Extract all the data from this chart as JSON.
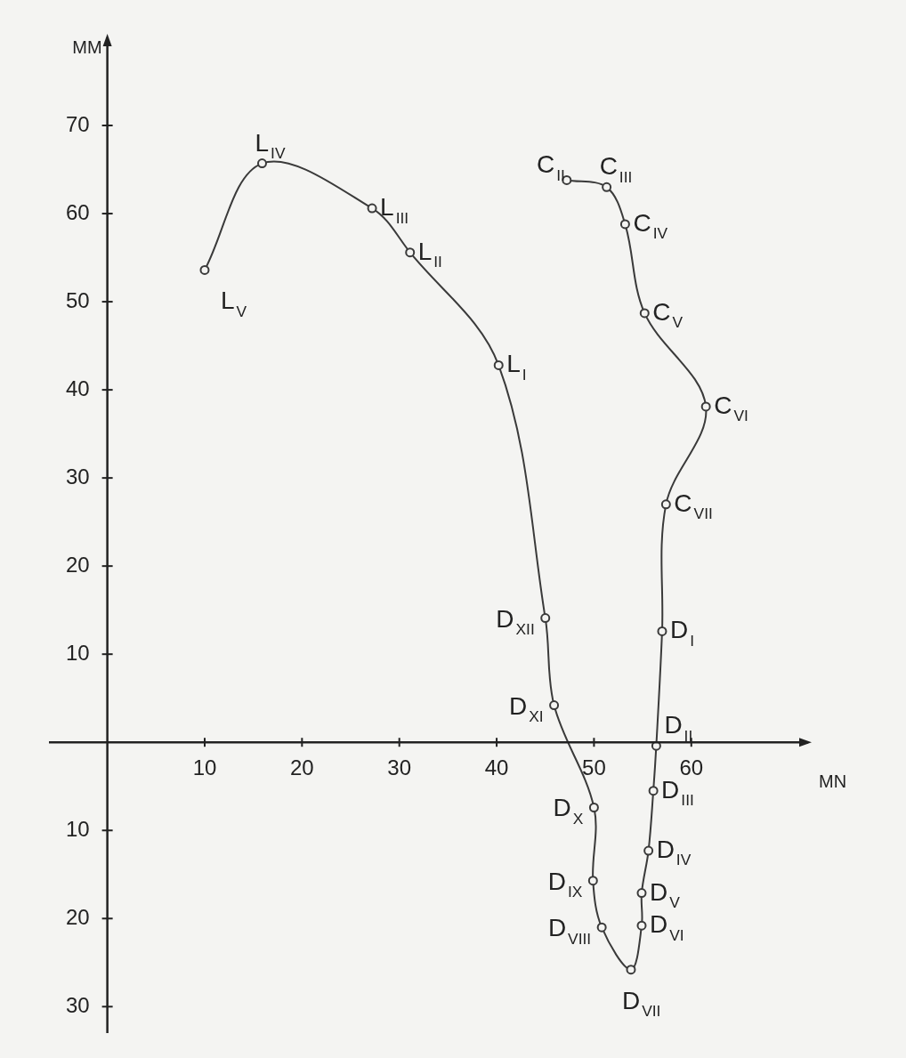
{
  "chart_data": {
    "type": "line",
    "xlabel": "MN",
    "ylabel": "MM",
    "xlim": [
      -6,
      72
    ],
    "ylim": [
      -33,
      80
    ],
    "xticks": [
      10,
      20,
      30,
      40,
      50,
      60
    ],
    "yticks": [
      {
        "value": -30,
        "label": "30"
      },
      {
        "value": -20,
        "label": "20"
      },
      {
        "value": -10,
        "label": "10"
      },
      10,
      20,
      30,
      40,
      50,
      60,
      70
    ],
    "grid": false,
    "legend": false,
    "marker": "circle",
    "line_style": "solid",
    "series": [
      {
        "color": "#3a3a3a",
        "x": [
          10,
          15.9,
          27.2,
          31.1,
          40.2,
          45.0,
          45.9,
          50.0,
          49.9,
          50.8,
          53.8,
          54.9,
          54.9,
          55.6,
          56.1,
          56.4,
          57.0,
          57.4,
          61.5,
          55.2,
          53.2,
          51.3,
          47.2
        ],
        "values": [
          53.6,
          65.7,
          60.6,
          55.6,
          42.8,
          14.1,
          4.2,
          -7.4,
          -15.7,
          -21.0,
          -25.8,
          -20.8,
          -17.1,
          -12.3,
          -5.5,
          -0.4,
          12.6,
          27.0,
          38.1,
          48.7,
          58.8,
          63.0,
          63.8
        ]
      }
    ],
    "annotations": [
      {
        "text": "L$_{V}$",
        "x": 10,
        "y": 53.6
      },
      {
        "text": "L$_{IV}$",
        "x": 15.9,
        "y": 65.7
      },
      {
        "text": "L$_{III}$",
        "x": 27.2,
        "y": 60.6
      },
      {
        "text": "L$_{II}$",
        "x": 31.1,
        "y": 55.6
      },
      {
        "text": "L$_{I}$",
        "x": 40.2,
        "y": 42.8
      },
      {
        "text": "D$_{XII}$",
        "x": 45.0,
        "y": 14.1
      },
      {
        "text": "D$_{XI}$",
        "x": 45.9,
        "y": 4.2
      },
      {
        "text": "D$_{X}$",
        "x": 50.0,
        "y": -7.4
      },
      {
        "text": "D$_{IX}$",
        "x": 49.9,
        "y": -15.7
      },
      {
        "text": "D$_{VIII}$",
        "x": 50.8,
        "y": -21.0
      },
      {
        "text": "D$_{VII}$",
        "x": 53.8,
        "y": -25.8
      },
      {
        "text": "D$_{VI}$",
        "x": 54.9,
        "y": -20.8
      },
      {
        "text": "D$_{V}$",
        "x": 54.9,
        "y": -17.1
      },
      {
        "text": "D$_{IV}$",
        "x": 55.6,
        "y": -12.3
      },
      {
        "text": "D$_{III}$",
        "x": 56.1,
        "y": -5.5
      },
      {
        "text": "D$_{II}$",
        "x": 56.4,
        "y": -0.4
      },
      {
        "text": "D$_{I}$",
        "x": 57.0,
        "y": 12.6
      },
      {
        "text": "C$_{VII}$",
        "x": 57.4,
        "y": 27.0
      },
      {
        "text": "C$_{VI}$",
        "x": 61.5,
        "y": 38.1
      },
      {
        "text": "C$_{V}$",
        "x": 55.2,
        "y": 48.7
      },
      {
        "text": "C$_{IV}$",
        "x": 53.2,
        "y": 58.8
      },
      {
        "text": "C$_{III}$",
        "x": 51.3,
        "y": 63.0
      },
      {
        "text": "C$_{II}$",
        "x": 47.2,
        "y": 63.8
      }
    ]
  }
}
